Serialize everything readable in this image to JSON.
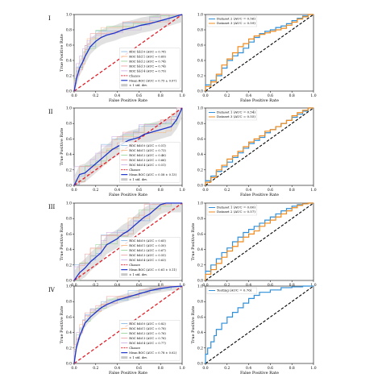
{
  "figure": {
    "row_labels": [
      "I",
      "II",
      "III",
      "IV"
    ]
  },
  "colors": {
    "mean": "#1f35c8",
    "chance": "#e0202a",
    "std_band": "#c8c8c8",
    "fold_colors": [
      "#7fb3e0",
      "#f6b47a",
      "#8fd08f",
      "#e99a9a",
      "#c7a6e0"
    ],
    "test_a": "#2f8fd8",
    "test_b": "#f08a1c",
    "diag": "#000000"
  },
  "chart_data": [
    {
      "id": "I-cv",
      "type": "line",
      "xlabel": "False Positive Rate",
      "ylabel": "True Positive Rate",
      "xlim": [
        0,
        1
      ],
      "ylim": [
        0,
        1
      ],
      "xticks": [
        "0.0",
        "0.2",
        "0.4",
        "0.6",
        "0.8",
        "1.0"
      ],
      "yticks": [
        "0.0",
        "0.2",
        "0.4",
        "0.6",
        "0.8",
        "1.0"
      ],
      "legend_position": "lower-right",
      "legend": [
        "ROC fold 0 (AUC = 0.78)",
        "ROC fold 1 (AUC = 0.69)",
        "ROC fold 2 (AUC = 0.74)",
        "ROC fold 3 (AUC = 0.74)",
        "ROC fold 4 (AUC = 0.79)",
        "Chance",
        "Mean ROC (AUC = 0.75 ± 0.07)",
        "± 1 std. dev."
      ],
      "mean_x": [
        0,
        0.02,
        0.05,
        0.08,
        0.1,
        0.12,
        0.15,
        0.2,
        0.25,
        0.3,
        0.38,
        0.45,
        0.55,
        0.62,
        0.7,
        0.8,
        0.88,
        0.95,
        1.0
      ],
      "mean_y": [
        0,
        0.15,
        0.3,
        0.38,
        0.45,
        0.5,
        0.58,
        0.65,
        0.7,
        0.73,
        0.76,
        0.8,
        0.83,
        0.86,
        0.88,
        0.92,
        0.95,
        0.98,
        1.0
      ],
      "std": 0.1
    },
    {
      "id": "I-test",
      "type": "line",
      "xlabel": "False Positive Rate",
      "ylabel": "",
      "xlim": [
        0,
        1
      ],
      "ylim": [
        0,
        1
      ],
      "xticks": [
        "0.0",
        "0.2",
        "0.4",
        "0.6",
        "0.8",
        "1.0"
      ],
      "yticks": [
        "0.0",
        "0.2",
        "0.4",
        "0.6",
        "0.8",
        "1.0"
      ],
      "legend_position": "upper-left",
      "series": [
        {
          "name": "Dataset 2 (AUC = 0.56)",
          "x": [
            0,
            0.05,
            0.1,
            0.15,
            0.2,
            0.25,
            0.3,
            0.35,
            0.4,
            0.45,
            0.5,
            0.55,
            0.6,
            0.65,
            0.7,
            0.75,
            0.8,
            0.85,
            0.9,
            0.95,
            1.0
          ],
          "y": [
            0,
            0.08,
            0.14,
            0.2,
            0.3,
            0.4,
            0.46,
            0.5,
            0.56,
            0.64,
            0.7,
            0.75,
            0.78,
            0.8,
            0.83,
            0.85,
            0.88,
            0.92,
            0.95,
            0.98,
            1.0
          ]
        },
        {
          "name": "Dataset 3 (AUC = 0.59)",
          "x": [
            0,
            0.05,
            0.1,
            0.15,
            0.2,
            0.25,
            0.3,
            0.35,
            0.4,
            0.45,
            0.5,
            0.55,
            0.6,
            0.65,
            0.7,
            0.75,
            0.8,
            0.85,
            0.9,
            0.95,
            1.0
          ],
          "y": [
            0,
            0.06,
            0.12,
            0.22,
            0.34,
            0.42,
            0.5,
            0.58,
            0.62,
            0.68,
            0.72,
            0.74,
            0.76,
            0.78,
            0.8,
            0.82,
            0.86,
            0.9,
            0.94,
            0.97,
            1.0
          ]
        }
      ]
    },
    {
      "id": "II-cv",
      "type": "line",
      "xlabel": "False Positive Rate",
      "ylabel": "True Positive Rate",
      "xlim": [
        0,
        1
      ],
      "ylim": [
        0,
        1
      ],
      "xticks": [
        "0.0",
        "0.2",
        "0.4",
        "0.6",
        "0.8",
        "1.0"
      ],
      "yticks": [
        "0.0",
        "0.2",
        "0.4",
        "0.6",
        "0.8",
        "1.0"
      ],
      "legend_position": "lower-right",
      "legend": [
        "ROC fold 0 (AUC = 0.51)",
        "ROC fold 1 (AUC = 0.73)",
        "ROC fold 2 (AUC = 0.46)",
        "ROC fold 3 (AUC = 0.66)",
        "ROC fold 4 (AUC = 0.51)",
        "Chance",
        "Mean ROC (AUC = 0.58 ± 0.13)",
        "± 1 std. dev."
      ],
      "mean_x": [
        0,
        0.05,
        0.1,
        0.15,
        0.2,
        0.25,
        0.3,
        0.35,
        0.4,
        0.45,
        0.5,
        0.55,
        0.6,
        0.65,
        0.7,
        0.75,
        0.8,
        0.85,
        0.9,
        0.95,
        1.0
      ],
      "mean_y": [
        0,
        0.14,
        0.16,
        0.22,
        0.28,
        0.34,
        0.4,
        0.46,
        0.5,
        0.54,
        0.58,
        0.6,
        0.62,
        0.66,
        0.68,
        0.7,
        0.72,
        0.74,
        0.76,
        0.85,
        1.0
      ],
      "std": 0.12
    },
    {
      "id": "II-test",
      "type": "line",
      "xlabel": "False Positive Rate",
      "ylabel": "",
      "xlim": [
        0,
        1
      ],
      "ylim": [
        0,
        1
      ],
      "xticks": [
        "0.0",
        "0.2",
        "0.4",
        "0.6",
        "0.8",
        "1.0"
      ],
      "yticks": [
        "0.0",
        "0.2",
        "0.4",
        "0.6",
        "0.8",
        "1.0"
      ],
      "legend_position": "upper-left",
      "series": [
        {
          "name": "Dataset 1 (AUC = 0.54)",
          "x": [
            0,
            0.05,
            0.1,
            0.15,
            0.2,
            0.25,
            0.3,
            0.35,
            0.4,
            0.45,
            0.5,
            0.55,
            0.6,
            0.65,
            0.7,
            0.75,
            0.8,
            0.85,
            0.9,
            0.95,
            1.0
          ],
          "y": [
            0,
            0.06,
            0.12,
            0.18,
            0.24,
            0.3,
            0.36,
            0.42,
            0.48,
            0.54,
            0.58,
            0.62,
            0.68,
            0.72,
            0.76,
            0.8,
            0.84,
            0.88,
            0.92,
            0.96,
            1.0
          ]
        },
        {
          "name": "Dataset 3 (AUC = 0.55)",
          "x": [
            0,
            0.05,
            0.1,
            0.15,
            0.2,
            0.25,
            0.3,
            0.35,
            0.4,
            0.45,
            0.5,
            0.55,
            0.6,
            0.65,
            0.7,
            0.75,
            0.8,
            0.85,
            0.9,
            0.95,
            1.0
          ],
          "y": [
            0,
            0.04,
            0.1,
            0.2,
            0.26,
            0.34,
            0.38,
            0.44,
            0.5,
            0.56,
            0.6,
            0.64,
            0.7,
            0.72,
            0.76,
            0.8,
            0.84,
            0.9,
            0.94,
            0.97,
            1.0
          ]
        }
      ]
    },
    {
      "id": "III-cv",
      "type": "line",
      "xlabel": "False Positive Rate",
      "ylabel": "True Positive Rate",
      "xlim": [
        0,
        1
      ],
      "ylim": [
        0,
        1
      ],
      "xticks": [
        "0.0",
        "0.2",
        "0.4",
        "0.6",
        "0.8",
        "1.0"
      ],
      "yticks": [
        "0.0",
        "0.2",
        "0.4",
        "0.6",
        "0.8",
        "1.0"
      ],
      "legend_position": "lower-right",
      "legend": [
        "ROC fold 0 (AUC = 0.65)",
        "ROC fold 1 (AUC = 0.50)",
        "ROC fold 2 (AUC = 0.67)",
        "ROC fold 3 (AUC = 0.55)",
        "ROC fold 4 (AUC = 0.63)",
        "Chance",
        "Mean ROC (AUC = 0.61 ± 0.11)",
        "± 1 std. dev."
      ],
      "mean_x": [
        0,
        0.05,
        0.1,
        0.15,
        0.2,
        0.25,
        0.3,
        0.35,
        0.4,
        0.45,
        0.5,
        0.55,
        0.6,
        0.65,
        0.7,
        0.75,
        0.8,
        0.85,
        0.9,
        0.95,
        1.0
      ],
      "mean_y": [
        0,
        0.1,
        0.16,
        0.24,
        0.3,
        0.36,
        0.46,
        0.5,
        0.54,
        0.6,
        0.64,
        0.7,
        0.76,
        0.82,
        0.86,
        0.92,
        0.98,
        1.0,
        1.0,
        1.0,
        1.0
      ],
      "std": 0.12
    },
    {
      "id": "III-test",
      "type": "line",
      "xlabel": "False Positive Rate",
      "ylabel": "True Positive Rate",
      "xlim": [
        0,
        1
      ],
      "ylim": [
        0,
        1
      ],
      "xticks": [
        "0.0",
        "0.2",
        "0.4",
        "0.6",
        "0.8",
        "1.0"
      ],
      "yticks": [
        "0.0",
        "0.2",
        "0.4",
        "0.6",
        "0.8",
        "1.0"
      ],
      "legend_position": "upper-left",
      "series": [
        {
          "name": "Dataset 1 (AUC = 0.60)",
          "x": [
            0,
            0.05,
            0.1,
            0.15,
            0.2,
            0.25,
            0.3,
            0.35,
            0.4,
            0.45,
            0.5,
            0.55,
            0.6,
            0.65,
            0.7,
            0.75,
            0.8,
            0.85,
            0.9,
            0.95,
            1.0
          ],
          "y": [
            0,
            0.12,
            0.2,
            0.28,
            0.36,
            0.42,
            0.5,
            0.56,
            0.62,
            0.66,
            0.7,
            0.74,
            0.78,
            0.82,
            0.86,
            0.9,
            0.93,
            0.96,
            0.98,
            0.99,
            1.0
          ]
        },
        {
          "name": "Dataset 2 (AUC = 0.57)",
          "x": [
            0,
            0.05,
            0.1,
            0.15,
            0.2,
            0.25,
            0.3,
            0.35,
            0.4,
            0.45,
            0.5,
            0.55,
            0.6,
            0.65,
            0.7,
            0.75,
            0.8,
            0.85,
            0.9,
            0.95,
            1.0
          ],
          "y": [
            0,
            0.08,
            0.14,
            0.22,
            0.3,
            0.38,
            0.44,
            0.5,
            0.56,
            0.6,
            0.64,
            0.7,
            0.74,
            0.78,
            0.82,
            0.86,
            0.9,
            0.94,
            0.97,
            0.99,
            1.0
          ]
        }
      ]
    },
    {
      "id": "IV-cv",
      "type": "line",
      "xlabel": "False Positive Rate",
      "ylabel": "True Positive Rate",
      "xlim": [
        0,
        1
      ],
      "ylim": [
        0,
        1
      ],
      "xticks": [
        "0.0",
        "0.2",
        "0.4",
        "0.6",
        "0.8",
        "1.0"
      ],
      "yticks": [
        "0.0",
        "0.2",
        "0.4",
        "0.6",
        "0.8",
        "1.0"
      ],
      "legend_position": "lower-right",
      "legend": [
        "ROC fold 0 (AUC = 0.82)",
        "ROC fold 1 (AUC = 0.78)",
        "ROC fold 2 (AUC = 0.76)",
        "ROC fold 3 (AUC = 0.76)",
        "ROC fold 4 (AUC = 0.77)",
        "Chance",
        "Mean ROC (AUC = 0.78 ± 0.02)",
        "± 1 std. dev."
      ],
      "mean_x": [
        0,
        0.02,
        0.05,
        0.08,
        0.1,
        0.15,
        0.2,
        0.25,
        0.3,
        0.4,
        0.5,
        0.6,
        0.7,
        0.8,
        0.9,
        1.0
      ],
      "mean_y": [
        0,
        0.2,
        0.35,
        0.45,
        0.52,
        0.6,
        0.66,
        0.72,
        0.76,
        0.82,
        0.86,
        0.9,
        0.94,
        0.97,
        0.99,
        1.0
      ],
      "std": 0.05
    },
    {
      "id": "IV-test",
      "type": "line",
      "xlabel": "False Positive Rate",
      "ylabel": "True Positive Rate",
      "xlim": [
        0,
        1
      ],
      "ylim": [
        0,
        1
      ],
      "xticks": [
        "0.0",
        "0.2",
        "0.4",
        "0.6",
        "0.8",
        "1.0"
      ],
      "yticks": [
        "0.0",
        "0.2",
        "0.4",
        "0.6",
        "0.8",
        "1.0"
      ],
      "legend_position": "upper-left",
      "series": [
        {
          "name": "Testing (AUC = 0.76)",
          "x": [
            0,
            0.02,
            0.05,
            0.08,
            0.1,
            0.15,
            0.2,
            0.25,
            0.3,
            0.35,
            0.4,
            0.45,
            0.5,
            0.6,
            0.7,
            0.8,
            0.9,
            1.0
          ],
          "y": [
            0,
            0.12,
            0.2,
            0.28,
            0.36,
            0.44,
            0.52,
            0.6,
            0.66,
            0.72,
            0.78,
            0.84,
            0.88,
            0.92,
            0.95,
            0.98,
            0.99,
            1.0
          ]
        }
      ]
    }
  ]
}
